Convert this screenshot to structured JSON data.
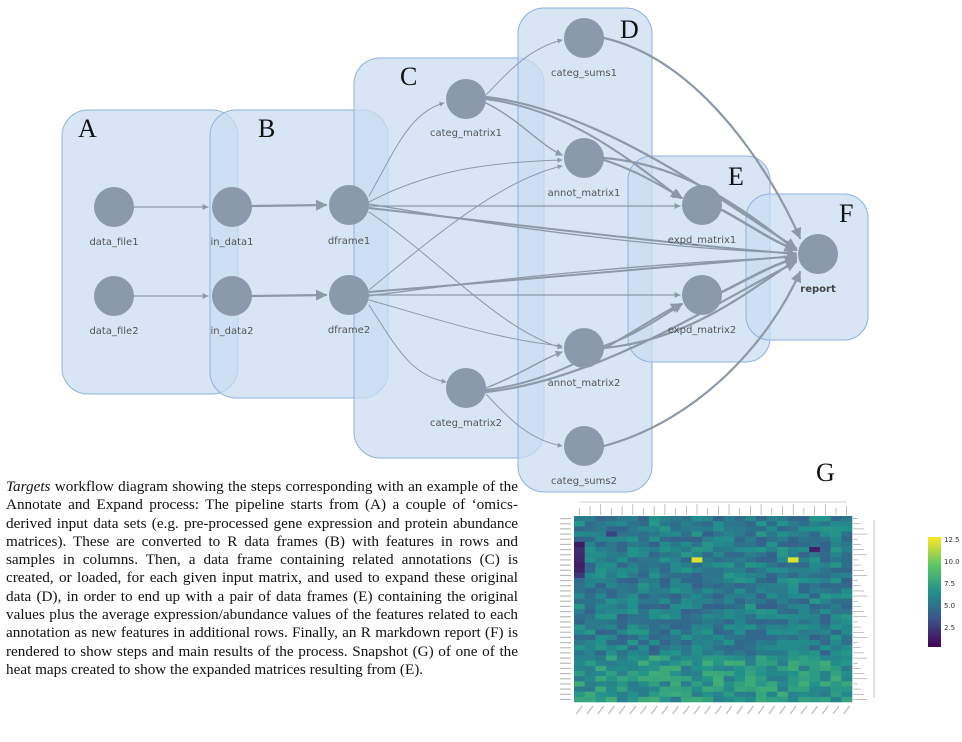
{
  "panels": [
    {
      "letter": "A"
    },
    {
      "letter": "B"
    },
    {
      "letter": "C"
    },
    {
      "letter": "D"
    },
    {
      "letter": "E"
    },
    {
      "letter": "F"
    }
  ],
  "nodes": {
    "data_file1": "data_file1",
    "data_file2": "data_file2",
    "in_data1": "in_data1",
    "in_data2": "in_data2",
    "dframe1": "dframe1",
    "dframe2": "dframe2",
    "categ_matrix1": "categ_matrix1",
    "categ_matrix2": "categ_matrix2",
    "categ_sums1": "categ_sums1",
    "categ_sums2": "categ_sums2",
    "annot_matrix1": "annot_matrix1",
    "annot_matrix2": "annot_matrix2",
    "expd_matrix1": "expd_matrix1",
    "expd_matrix2": "expd_matrix2",
    "report": "report"
  },
  "caption": {
    "italic": "Targets",
    "text": " workflow diagram showing the steps corresponding with an example of the Annotate and Expand process: The pipeline starts from (A) a couple of ‘omics-derived input data sets (e.g. pre-processed gene expression and protein abundance matrices). These are converted to R data frames (B) with features in rows and samples in columns. Then, a data frame containing related annotations (C) is created, or loaded, for each given input matrix, and used to expand these original data (D), in order to end up with a pair of data frames (E) containing the original values plus the average expression/abundance values of the features related to each annotation as new features in additional rows. Finally, an R markdown report (F) is rendered to show steps and main results of the process. Snapshot (G) of one of the heat maps created to show the expanded matrices resulting from (E)."
  },
  "heatmap": {
    "letter": "G",
    "colorbar_ticks": [
      "12.5",
      "10.0",
      "7.5",
      "5.0",
      "2.5"
    ],
    "colors": {
      "low": "#440154",
      "mid": "#21918c",
      "high": "#fde725"
    }
  },
  "colors": {
    "panel_fill": "#c9dcf2",
    "panel_stroke": "#8fb2de",
    "node_fill": "#8a9aac",
    "edge": "#8c99a8"
  }
}
